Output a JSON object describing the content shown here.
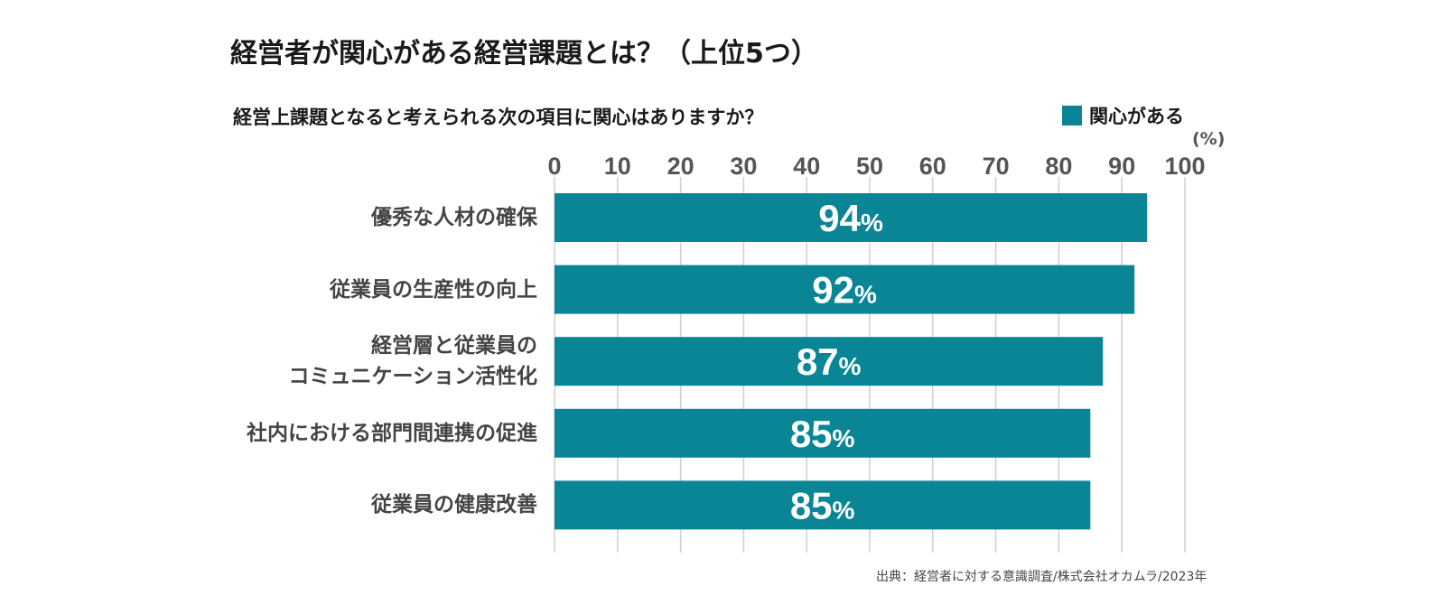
{
  "title": "経営者が関心がある経営課題とは？（上位5つ）",
  "question": "経営上課題となると考えられる次の項目に関心はありますか？",
  "unit_label": "(%)",
  "source": "出典：経営者に対する意識調査/株式会社オカムラ/2023年",
  "colors": {
    "bar": "#0a8596",
    "grid": "#d0d0d0",
    "tick": "#555555",
    "bar_label": "#ffffff"
  },
  "chart_data": {
    "type": "bar",
    "orientation": "horizontal",
    "categories": [
      [
        "優秀な人材の確保"
      ],
      [
        "従業員の生産性の向上"
      ],
      [
        "経営層と従業員の",
        "コミュニケーション活性化"
      ],
      [
        "社内における部門間連携の促進"
      ],
      [
        "従業員の健康改善"
      ]
    ],
    "series": [
      {
        "name": "関心がある",
        "values": [
          94,
          92,
          87,
          85,
          85
        ]
      }
    ],
    "data_labels": [
      "94%",
      "92%",
      "87%",
      "85%",
      "85%"
    ],
    "xlim": [
      0,
      100
    ],
    "xticks": [
      0,
      10,
      20,
      30,
      40,
      50,
      60,
      70,
      80,
      90,
      100
    ],
    "grid": true,
    "legend": "top-right"
  }
}
